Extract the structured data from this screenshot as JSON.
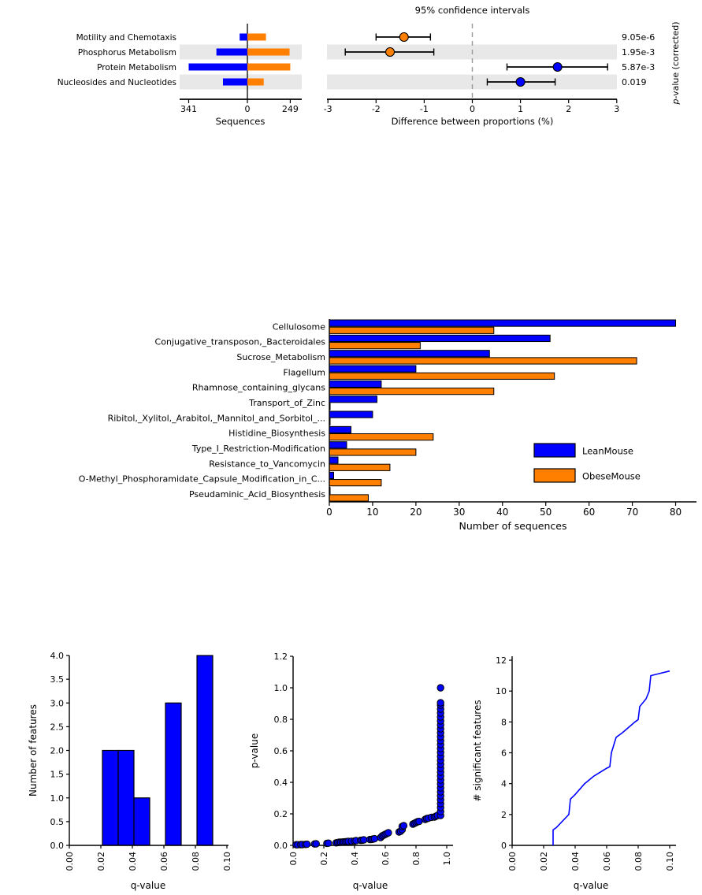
{
  "colors": {
    "lean_blue": "#0000ff",
    "obese_orange": "#ff7f00",
    "row_band": "#e8e8e8",
    "dashed_zero_line": "#999999",
    "axis": "#000000"
  },
  "chart_data": [
    {
      "id": "extended-error-bar",
      "type": "errorbar",
      "title": "95% confidence intervals",
      "left_xlabel": "Sequences",
      "right_xlabel": "Difference between proportions (%)",
      "right_ylabel_italic_prefix": "p",
      "right_ylabel_rest": "-value (corrected)",
      "left_xticks": [
        "341",
        "0",
        "249"
      ],
      "left_xlim_blue_max": 341,
      "left_xlim_orange_max": 249,
      "right_xticks": [
        -3,
        -2,
        -1,
        0,
        1,
        2,
        3
      ],
      "right_xlim": [
        -3,
        3
      ],
      "rows": [
        {
          "label": "Motility and Chemotaxis",
          "sequences_blue": 45,
          "sequences_orange": 108,
          "diff": -1.42,
          "ci": [
            -2.0,
            -0.87
          ],
          "marker": "orange",
          "p_value": "9.05e-6",
          "shaded": false
        },
        {
          "label": "Phosphorus Metabolism",
          "sequences_blue": 180,
          "sequences_orange": 245,
          "diff": -1.71,
          "ci": [
            -2.64,
            -0.8
          ],
          "marker": "orange",
          "p_value": "1.95e-3",
          "shaded": true
        },
        {
          "label": "Protein Metabolism",
          "sequences_blue": 341,
          "sequences_orange": 249,
          "diff": 1.77,
          "ci": [
            0.72,
            2.81
          ],
          "marker": "blue",
          "p_value": "5.87e-3",
          "shaded": false
        },
        {
          "label": "Nucleosides and Nucleotides",
          "sequences_blue": 142,
          "sequences_orange": 95,
          "diff": 1.0,
          "ci": [
            0.31,
            1.72
          ],
          "marker": "blue",
          "p_value": "0.019",
          "shaded": true
        }
      ]
    },
    {
      "id": "subsystem-bars",
      "type": "bar",
      "orientation": "horizontal",
      "xlabel": "Number of sequences",
      "xlim": [
        0,
        80
      ],
      "xticks": [
        0,
        10,
        20,
        30,
        40,
        50,
        60,
        70,
        80
      ],
      "categories": [
        "Cellulosome",
        "Conjugative_transposon,_Bacteroidales",
        "Sucrose_Metabolism",
        "Flagellum",
        "Rhamnose_containing_glycans",
        "Transport_of_Zinc",
        "Ribitol,_Xylitol,_Arabitol,_Mannitol_and_Sorbitol_...",
        "Histidine_Biosynthesis",
        "Type_I_Restriction-Modification",
        "Resistance_to_Vancomycin",
        "O-Methyl_Phosphoramidate_Capsule_Modification_in_C...",
        "Pseudaminic_Acid_Biosynthesis"
      ],
      "series": [
        {
          "name": "LeanMouse",
          "color_key": "lean_blue",
          "values": [
            80,
            51,
            37,
            20,
            12,
            11,
            10,
            5,
            4,
            2,
            1,
            0
          ]
        },
        {
          "name": "ObeseMouse",
          "color_key": "obese_orange",
          "values": [
            38,
            21,
            71,
            52,
            38,
            0,
            0,
            24,
            20,
            14,
            12,
            9
          ]
        }
      ],
      "legend_position": "right-middle"
    },
    {
      "id": "qvalue-histogram",
      "type": "bar",
      "subtype": "histogram",
      "xlabel": "q-value",
      "ylabel": "Number of features",
      "xlim": [
        0,
        0.1
      ],
      "ylim": [
        0,
        4
      ],
      "xticks": [
        [
          0,
          "0.00"
        ],
        [
          0.02,
          "0.02"
        ],
        [
          0.04,
          "0.04"
        ],
        [
          0.06,
          "0.06"
        ],
        [
          0.08,
          "0.08"
        ],
        [
          0.1,
          "0.10"
        ]
      ],
      "yticks": [
        [
          0,
          "0.0"
        ],
        [
          0.5,
          "0.5"
        ],
        [
          1,
          "1.0"
        ],
        [
          1.5,
          "1.5"
        ],
        [
          2,
          "2.0"
        ],
        [
          2.5,
          "2.5"
        ],
        [
          3,
          "3.0"
        ],
        [
          3.5,
          "3.5"
        ],
        [
          4,
          "4.0"
        ]
      ],
      "bars": [
        {
          "x0": 0.021,
          "x1": 0.031,
          "h": 2
        },
        {
          "x0": 0.031,
          "x1": 0.041,
          "h": 2
        },
        {
          "x0": 0.041,
          "x1": 0.051,
          "h": 1
        },
        {
          "x0": 0.061,
          "x1": 0.071,
          "h": 3
        },
        {
          "x0": 0.081,
          "x1": 0.091,
          "h": 4
        }
      ]
    },
    {
      "id": "pvalue-vs-qvalue",
      "type": "scatter",
      "xlabel": "q-value",
      "ylabel": "p-value",
      "xlim": [
        0,
        1.0
      ],
      "ylim": [
        0,
        1.2
      ],
      "xticks": [
        [
          0,
          "0.0"
        ],
        [
          0.2,
          "0.2"
        ],
        [
          0.4,
          "0.4"
        ],
        [
          0.6,
          "0.6"
        ],
        [
          0.8,
          "0.8"
        ],
        [
          1.0,
          "1.0"
        ]
      ],
      "yticks": [
        [
          0,
          "0.0"
        ],
        [
          0.2,
          "0.2"
        ],
        [
          0.4,
          "0.4"
        ],
        [
          0.6,
          "0.6"
        ],
        [
          0.8,
          "0.8"
        ],
        [
          1.0,
          "1.0"
        ],
        [
          1.2,
          "1.2"
        ]
      ],
      "points": [
        [
          0.02,
          0.004
        ],
        [
          0.03,
          0.004
        ],
        [
          0.05,
          0.005
        ],
        [
          0.06,
          0.005
        ],
        [
          0.08,
          0.006
        ],
        [
          0.09,
          0.007
        ],
        [
          0.14,
          0.009
        ],
        [
          0.15,
          0.01
        ],
        [
          0.22,
          0.013
        ],
        [
          0.23,
          0.014
        ],
        [
          0.28,
          0.016
        ],
        [
          0.29,
          0.018
        ],
        [
          0.3,
          0.02
        ],
        [
          0.31,
          0.02
        ],
        [
          0.32,
          0.021
        ],
        [
          0.33,
          0.022
        ],
        [
          0.34,
          0.023
        ],
        [
          0.35,
          0.024
        ],
        [
          0.36,
          0.025
        ],
        [
          0.38,
          0.026
        ],
        [
          0.4,
          0.028
        ],
        [
          0.41,
          0.03
        ],
        [
          0.44,
          0.032
        ],
        [
          0.45,
          0.033
        ],
        [
          0.46,
          0.035
        ],
        [
          0.5,
          0.037
        ],
        [
          0.51,
          0.038
        ],
        [
          0.52,
          0.04
        ],
        [
          0.53,
          0.042
        ],
        [
          0.57,
          0.05
        ],
        [
          0.58,
          0.06
        ],
        [
          0.59,
          0.065
        ],
        [
          0.6,
          0.07
        ],
        [
          0.61,
          0.075
        ],
        [
          0.62,
          0.08
        ],
        [
          0.69,
          0.085
        ],
        [
          0.7,
          0.09
        ],
        [
          0.71,
          0.1
        ],
        [
          0.71,
          0.12
        ],
        [
          0.72,
          0.125
        ],
        [
          0.78,
          0.135
        ],
        [
          0.79,
          0.14
        ],
        [
          0.8,
          0.145
        ],
        [
          0.81,
          0.15
        ],
        [
          0.82,
          0.152
        ],
        [
          0.86,
          0.165
        ],
        [
          0.87,
          0.17
        ],
        [
          0.88,
          0.172
        ],
        [
          0.9,
          0.178
        ],
        [
          0.92,
          0.18
        ],
        [
          0.93,
          0.185
        ],
        [
          0.94,
          0.19
        ],
        [
          0.96,
          0.19
        ],
        [
          0.96,
          0.215
        ],
        [
          0.96,
          0.24
        ],
        [
          0.96,
          0.265
        ],
        [
          0.96,
          0.29
        ],
        [
          0.96,
          0.315
        ],
        [
          0.96,
          0.34
        ],
        [
          0.96,
          0.365
        ],
        [
          0.96,
          0.39
        ],
        [
          0.96,
          0.415
        ],
        [
          0.96,
          0.44
        ],
        [
          0.96,
          0.465
        ],
        [
          0.96,
          0.49
        ],
        [
          0.96,
          0.515
        ],
        [
          0.96,
          0.54
        ],
        [
          0.96,
          0.565
        ],
        [
          0.96,
          0.59
        ],
        [
          0.96,
          0.615
        ],
        [
          0.96,
          0.64
        ],
        [
          0.96,
          0.665
        ],
        [
          0.96,
          0.69
        ],
        [
          0.96,
          0.715
        ],
        [
          0.96,
          0.74
        ],
        [
          0.96,
          0.765
        ],
        [
          0.96,
          0.79
        ],
        [
          0.96,
          0.815
        ],
        [
          0.96,
          0.84
        ],
        [
          0.96,
          0.865
        ],
        [
          0.96,
          0.89
        ],
        [
          0.96,
          0.905
        ],
        [
          0.96,
          1.0
        ]
      ]
    },
    {
      "id": "significant-features-curve",
      "type": "line",
      "xlabel": "q-value",
      "ylabel": "# significant features",
      "xlim": [
        0,
        0.1
      ],
      "ylim": [
        0,
        12
      ],
      "xticks": [
        [
          0,
          "0.00"
        ],
        [
          0.02,
          "0.02"
        ],
        [
          0.04,
          "0.04"
        ],
        [
          0.06,
          "0.06"
        ],
        [
          0.08,
          "0.08"
        ],
        [
          0.1,
          "0.10"
        ]
      ],
      "yticks": [
        [
          0,
          "0"
        ],
        [
          2,
          "2"
        ],
        [
          4,
          "4"
        ],
        [
          6,
          "6"
        ],
        [
          8,
          "8"
        ],
        [
          10,
          "10"
        ],
        [
          12,
          "12"
        ]
      ],
      "points": [
        [
          0.026,
          0
        ],
        [
          0.026,
          1
        ],
        [
          0.028,
          1.15
        ],
        [
          0.036,
          2
        ],
        [
          0.037,
          3
        ],
        [
          0.04,
          3.3
        ],
        [
          0.046,
          4
        ],
        [
          0.052,
          4.5
        ],
        [
          0.06,
          5
        ],
        [
          0.062,
          5.1
        ],
        [
          0.063,
          6
        ],
        [
          0.066,
          7
        ],
        [
          0.07,
          7.3
        ],
        [
          0.078,
          8
        ],
        [
          0.08,
          8.15
        ],
        [
          0.081,
          9
        ],
        [
          0.085,
          9.5
        ],
        [
          0.087,
          10
        ],
        [
          0.088,
          11
        ],
        [
          0.092,
          11.1
        ],
        [
          0.1,
          11.3
        ]
      ]
    }
  ]
}
